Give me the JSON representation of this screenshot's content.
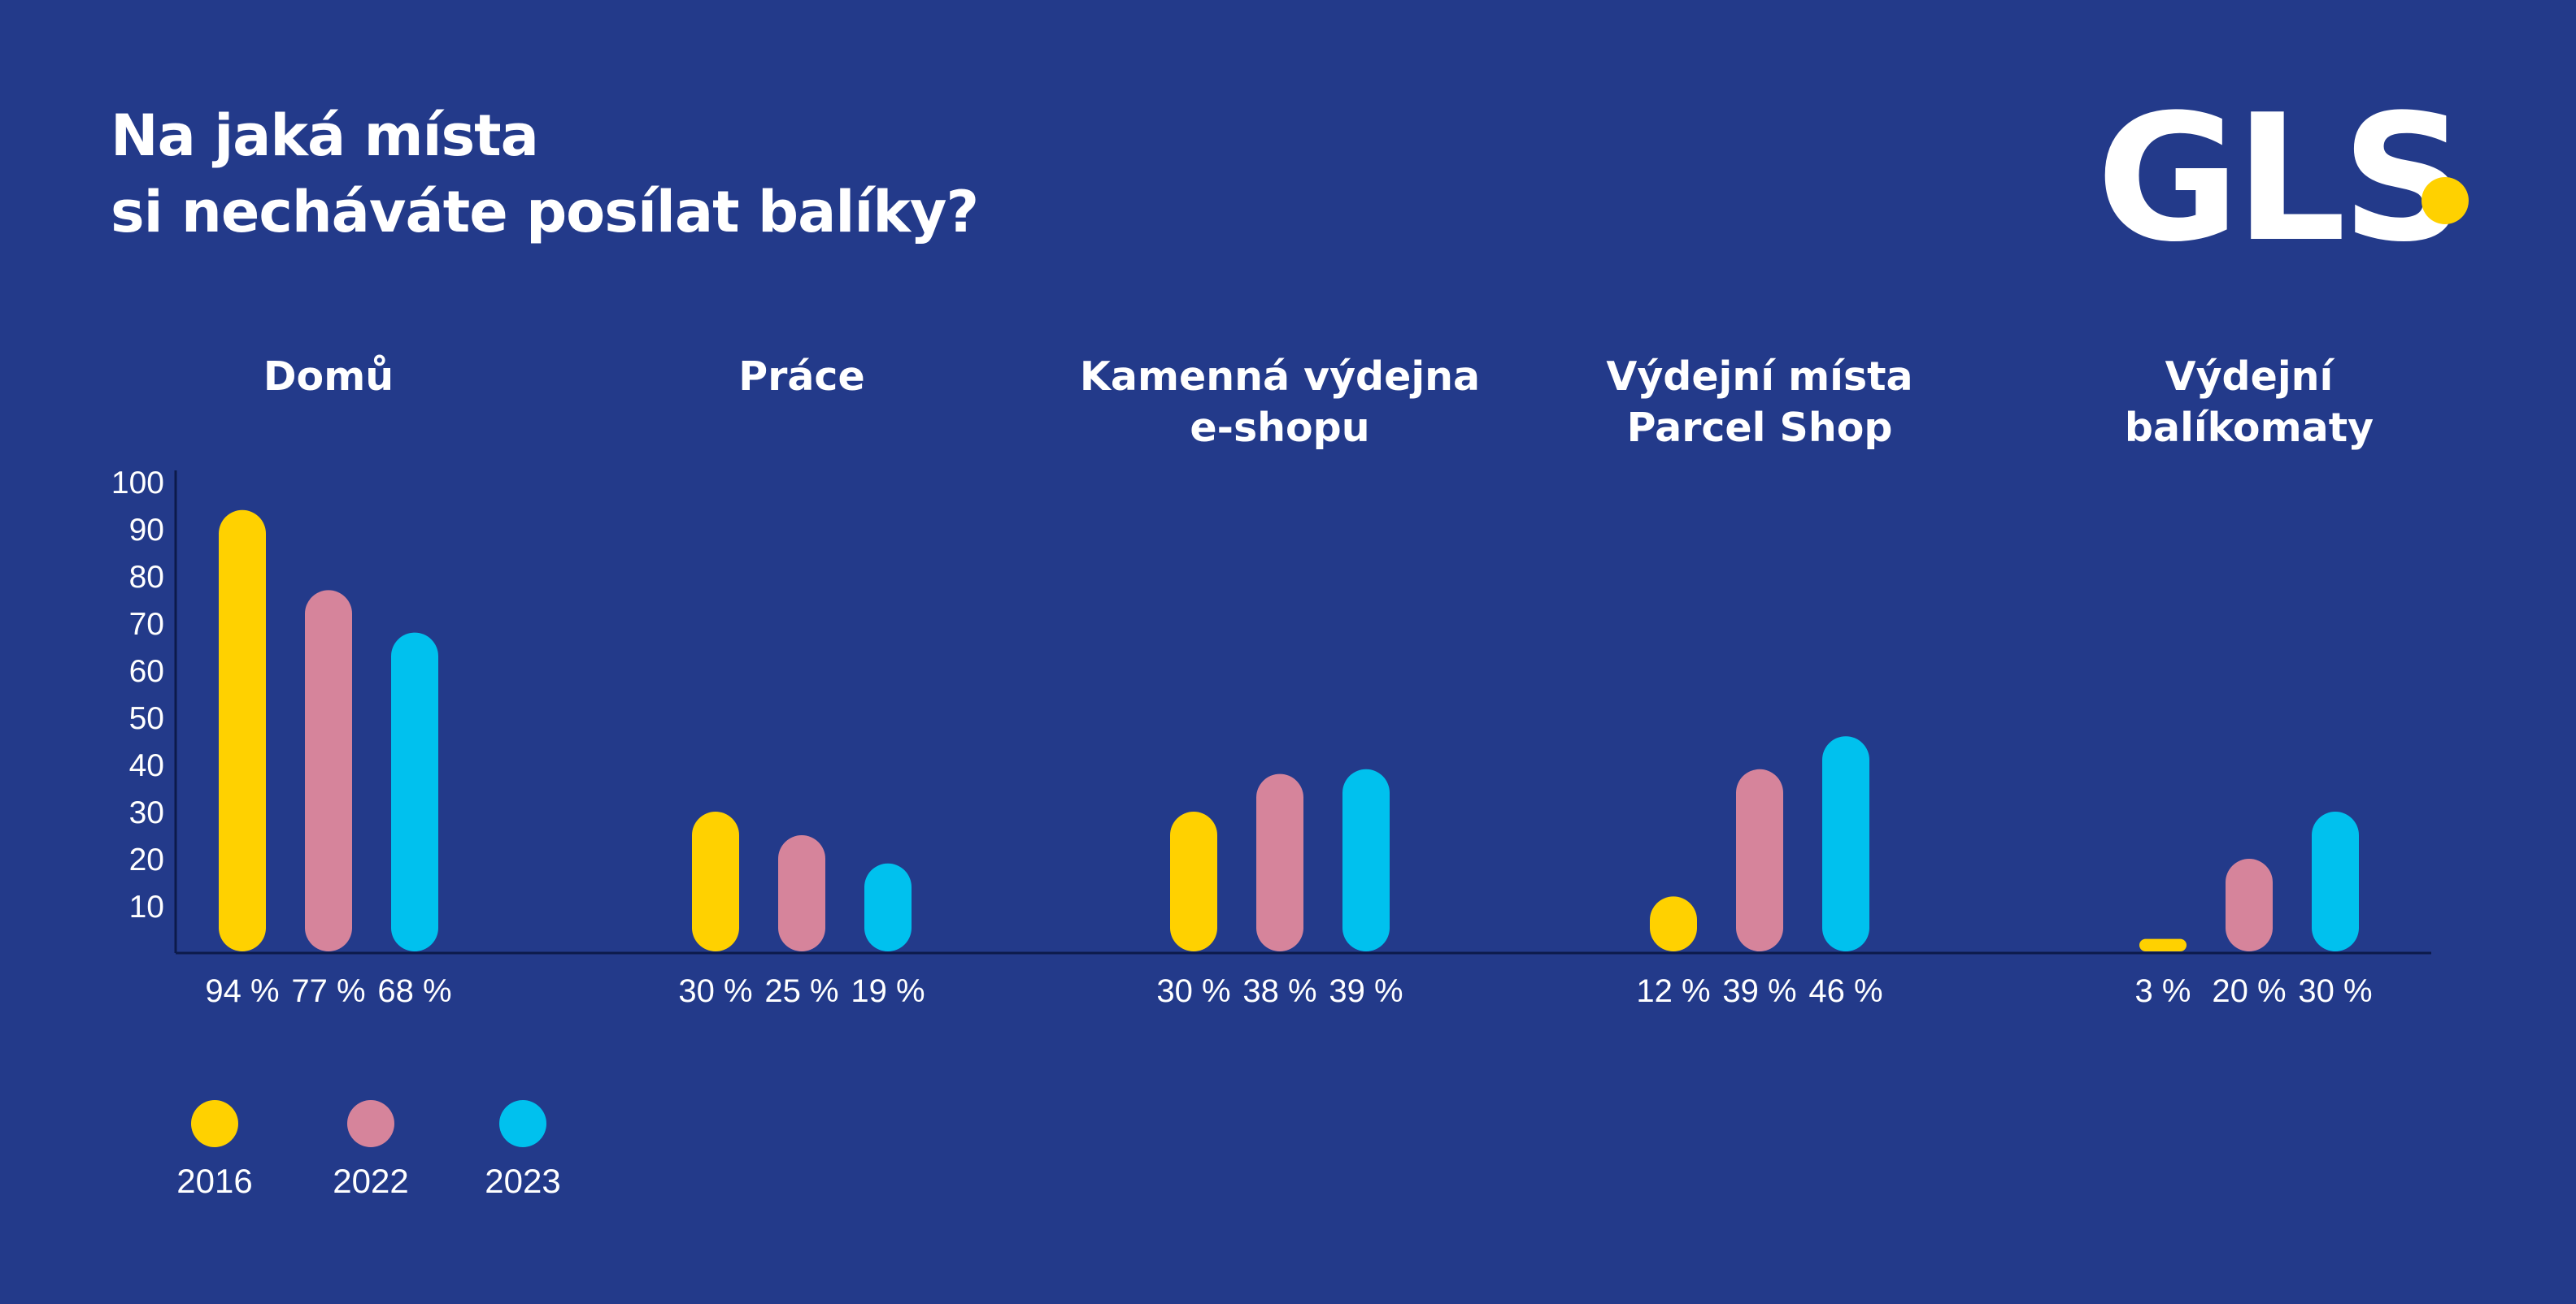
{
  "title": {
    "line1": "Na jaká místa",
    "line2": "si necháváte posílat balíky?"
  },
  "logo": {
    "text": "GLS",
    "dot_color": "#ffd100"
  },
  "colors": {
    "background": "#233a8a",
    "2016": "#ffd100",
    "2022": "#d6849b",
    "2023": "#00c1ee",
    "axis": "#0c1a4a"
  },
  "chart_data": {
    "type": "bar",
    "categories": [
      [
        "Domů"
      ],
      [
        "Práce"
      ],
      [
        "Kamenná výdejna",
        "e-shopu"
      ],
      [
        "Výdejní místa",
        "Parcel Shop"
      ],
      [
        "Výdejní",
        "balíkomaty"
      ]
    ],
    "series": [
      {
        "name": "2016",
        "color": "#ffd100",
        "values": [
          94,
          30,
          30,
          12,
          3
        ]
      },
      {
        "name": "2022",
        "color": "#d6849b",
        "values": [
          77,
          25,
          38,
          39,
          20
        ]
      },
      {
        "name": "2023",
        "color": "#00c1ee",
        "values": [
          68,
          19,
          39,
          46,
          30
        ]
      }
    ],
    "value_labels": [
      [
        "94 %",
        "30 %",
        "30 %",
        "12 %",
        "3 %"
      ],
      [
        "77 %",
        "25 %",
        "38 %",
        "39 %",
        "20 %"
      ],
      [
        "68 %",
        "19 %",
        "39 %",
        "46 %",
        "30 %"
      ]
    ],
    "yticks": [
      10,
      20,
      30,
      40,
      50,
      60,
      70,
      80,
      90,
      100
    ],
    "ylim": [
      0,
      100
    ],
    "grid": false,
    "legend_position": "bottom-left"
  }
}
